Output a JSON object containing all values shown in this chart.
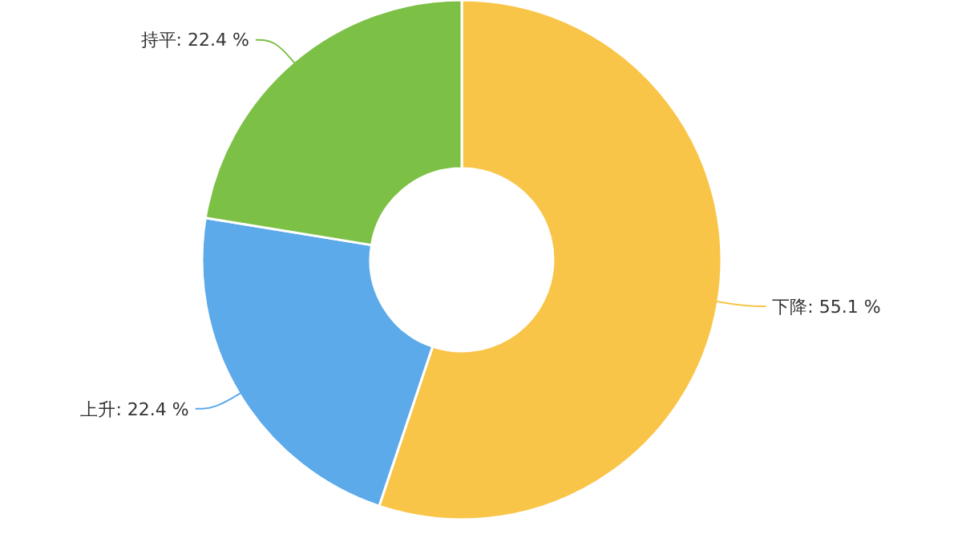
{
  "chart_data": {
    "type": "donut",
    "categories": [
      "下降",
      "上升",
      "持平"
    ],
    "values": [
      55.1,
      22.4,
      22.4
    ],
    "colors": [
      "#f9c548",
      "#5caaea",
      "#7cc046"
    ],
    "value_labels": [
      ": 55.1 %",
      ": 22.4 %",
      ": 22.4 %"
    ]
  }
}
